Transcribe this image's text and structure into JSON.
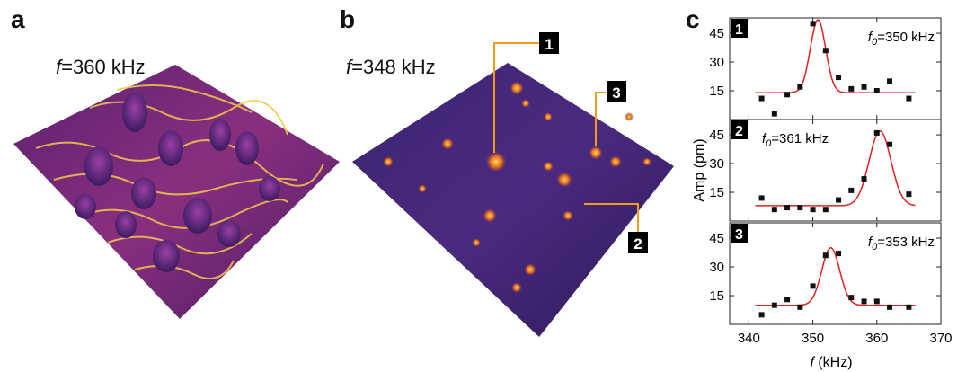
{
  "panels": {
    "a": {
      "letter": "a",
      "freq_symbol": "f",
      "freq_value": "=360 kHz"
    },
    "b": {
      "letter": "b",
      "freq_symbol": "f",
      "freq_value": "=348 kHz",
      "markers": [
        "1",
        "3",
        "2"
      ]
    },
    "c": {
      "letter": "c"
    }
  },
  "colors": {
    "surface_dark": "#3a1a5e",
    "surface_mid": "#7a2b86",
    "surface_hot": "#f2c94c",
    "marker_line": "#f39a1b",
    "fit_line": "#e0201b"
  },
  "chart_data": [
    {
      "type": "scatter",
      "panel_index": "1",
      "annotation_symbol": "f",
      "annotation_sub": "0",
      "annotation_value": "=350 kHz",
      "xlim": [
        337,
        370
      ],
      "ylim": [
        0,
        53
      ],
      "yticks": [
        "15",
        "30",
        "45"
      ],
      "points": [
        [
          342,
          11
        ],
        [
          344,
          3
        ],
        [
          346,
          13
        ],
        [
          348,
          17
        ],
        [
          350,
          50
        ],
        [
          352,
          36
        ],
        [
          354,
          22
        ],
        [
          356,
          16
        ],
        [
          358,
          17
        ],
        [
          360,
          15
        ],
        [
          362,
          20
        ],
        [
          365,
          11
        ]
      ],
      "fit": {
        "baseline": 14,
        "center": 350.8,
        "amplitude": 38,
        "width": 1.2
      }
    },
    {
      "type": "scatter",
      "panel_index": "2",
      "annotation_symbol": "f",
      "annotation_sub": "0",
      "annotation_value": "=361 kHz",
      "xlim": [
        337,
        370
      ],
      "ylim": [
        0,
        53
      ],
      "yticks": [
        "15",
        "30",
        "45"
      ],
      "points": [
        [
          342,
          12
        ],
        [
          344,
          6
        ],
        [
          346,
          7
        ],
        [
          348,
          7
        ],
        [
          350,
          6
        ],
        [
          352,
          6
        ],
        [
          354,
          11
        ],
        [
          356,
          16
        ],
        [
          358,
          22
        ],
        [
          360,
          46
        ],
        [
          362,
          40
        ],
        [
          365,
          14
        ]
      ],
      "fit": {
        "baseline": 8,
        "center": 360.5,
        "amplitude": 39,
        "width": 1.7
      }
    },
    {
      "type": "scatter",
      "panel_index": "3",
      "annotation_symbol": "f",
      "annotation_sub": "0",
      "annotation_value": "=353 kHz",
      "xlim": [
        337,
        370
      ],
      "ylim": [
        0,
        53
      ],
      "yticks": [
        "15",
        "30",
        "45"
      ],
      "points": [
        [
          342,
          5
        ],
        [
          344,
          10
        ],
        [
          346,
          13
        ],
        [
          348,
          9
        ],
        [
          350,
          20
        ],
        [
          352,
          36
        ],
        [
          354,
          37
        ],
        [
          356,
          14
        ],
        [
          358,
          12
        ],
        [
          360,
          12
        ],
        [
          362,
          9
        ],
        [
          365,
          9
        ]
      ],
      "fit": {
        "baseline": 10,
        "center": 352.8,
        "amplitude": 30,
        "width": 1.4
      }
    }
  ],
  "shared_axes": {
    "xticks": [
      "340",
      "350",
      "360",
      "370"
    ],
    "xlabel_symbol": "f",
    "xlabel_unit": " (kHz)",
    "ylabel": "Amp (pm)"
  }
}
